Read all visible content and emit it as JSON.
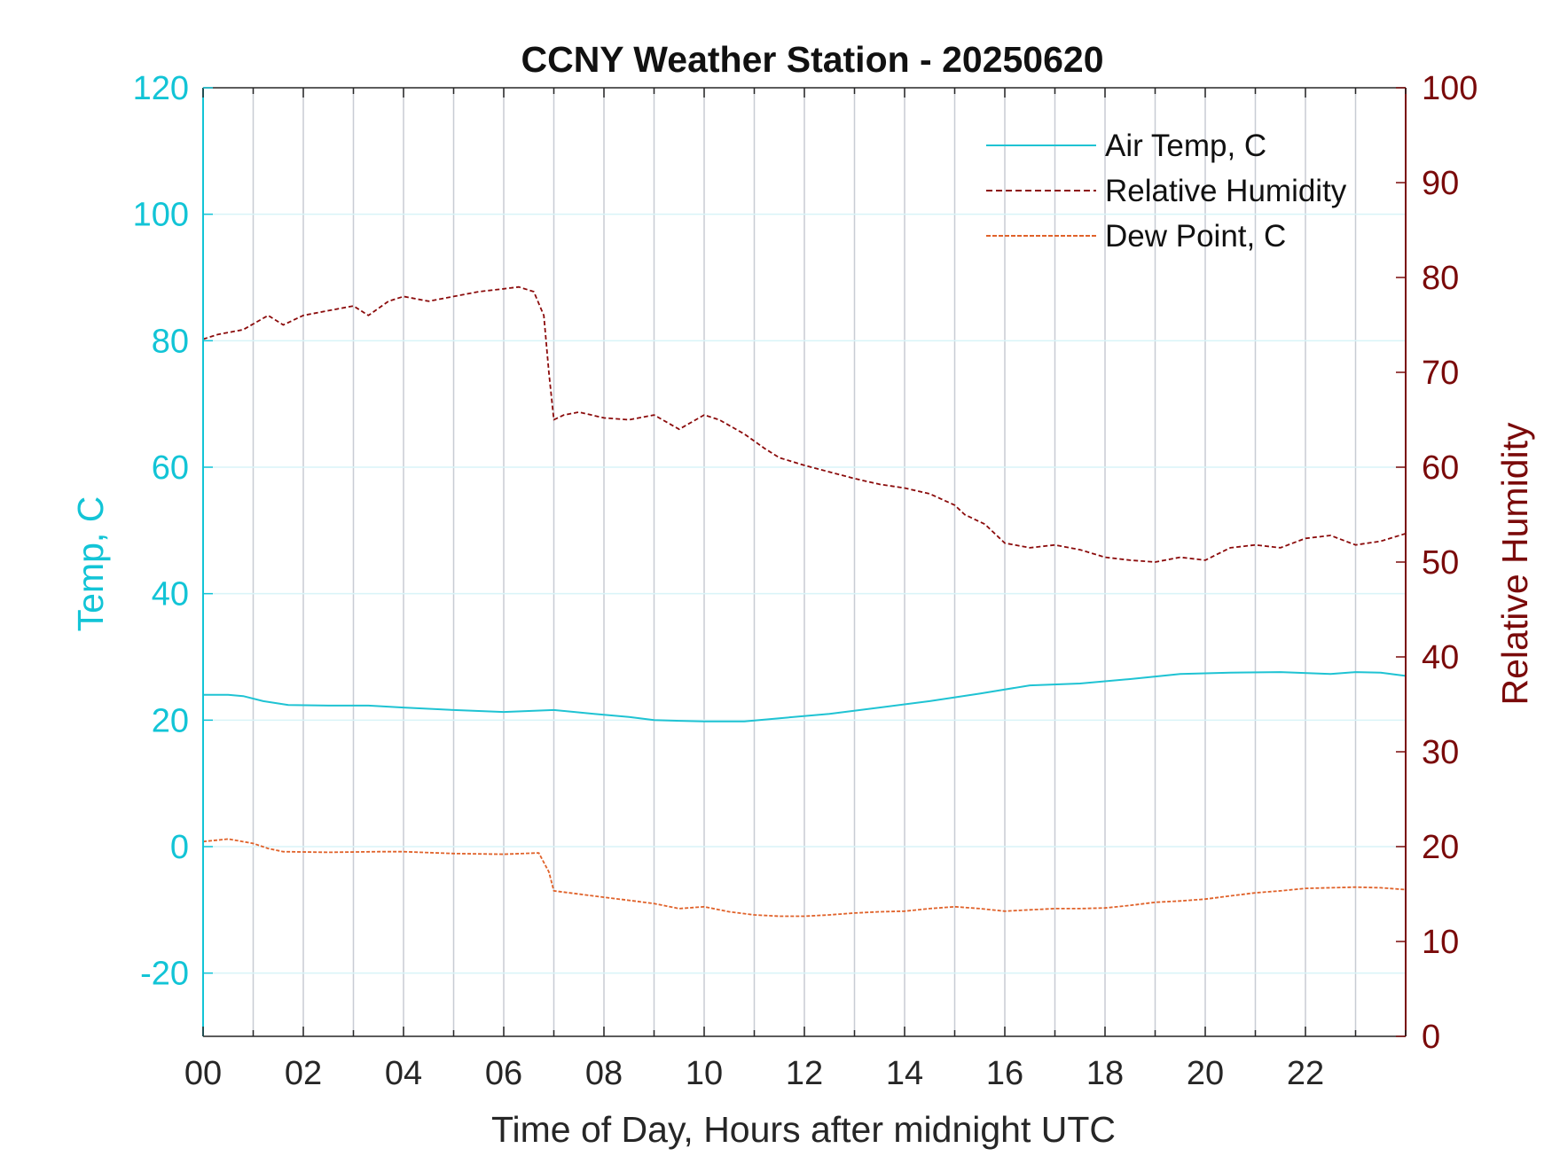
{
  "chart_data": {
    "type": "line",
    "title": "CCNY Weather Station - 20250620",
    "xlabel": "Time of Day, Hours after midnight UTC",
    "ylabel_left": "Temp, C",
    "ylabel_right": "Relative Humidity",
    "xlim": [
      0,
      24
    ],
    "ylim_left": [
      -30,
      120
    ],
    "ylim_right": [
      0,
      100
    ],
    "x_ticks": [
      0,
      2,
      4,
      6,
      8,
      10,
      12,
      14,
      16,
      18,
      20,
      22
    ],
    "x_tick_labels": [
      "00",
      "02",
      "04",
      "06",
      "08",
      "10",
      "12",
      "14",
      "16",
      "18",
      "20",
      "22"
    ],
    "y_ticks_left": [
      -20,
      0,
      20,
      40,
      60,
      80,
      100,
      120
    ],
    "y_ticks_right": [
      0,
      10,
      20,
      30,
      40,
      50,
      60,
      70,
      80,
      90,
      100
    ],
    "grid": true,
    "legend_position": "top-right",
    "colors": {
      "left_axis": "#12c4d6",
      "right_axis": "#7a0a0a",
      "grid_vertical": "#c8ccd4",
      "grid_horizontal": "#d9f4f8"
    },
    "series": [
      {
        "name": "Air Temp, C",
        "axis": "left",
        "color": "#1fc3d3",
        "dash": "solid",
        "x": [
          0,
          0.5,
          0.8,
          1.2,
          1.7,
          2.5,
          3.3,
          4.0,
          5.0,
          6.0,
          7.0,
          7.8,
          8.5,
          9.0,
          10.0,
          10.8,
          11.5,
          12.5,
          13.5,
          14.5,
          15.5,
          16.5,
          17.5,
          18.5,
          19.5,
          20.5,
          21.5,
          22.5,
          23.0,
          23.5,
          24.0
        ],
        "values": [
          24.0,
          24.0,
          23.8,
          23.0,
          22.4,
          22.3,
          22.3,
          22.0,
          21.6,
          21.3,
          21.6,
          21.0,
          20.5,
          20.0,
          19.8,
          19.8,
          20.3,
          21.0,
          22.0,
          23.0,
          24.2,
          25.5,
          25.8,
          26.5,
          27.3,
          27.5,
          27.6,
          27.3,
          27.6,
          27.5,
          27.0
        ]
      },
      {
        "name": "Relative Humidity",
        "axis": "right",
        "color": "#8b0b0b",
        "dash": "dashed",
        "x": [
          0,
          0.3,
          0.8,
          1.3,
          1.6,
          2.0,
          2.5,
          3.0,
          3.3,
          3.7,
          4.0,
          4.5,
          5.0,
          5.5,
          6.0,
          6.3,
          6.6,
          6.8,
          6.9,
          7.0,
          7.2,
          7.5,
          8.0,
          8.5,
          9.0,
          9.5,
          10.0,
          10.3,
          10.8,
          11.2,
          11.5,
          12.0,
          12.5,
          13.0,
          13.5,
          14.0,
          14.5,
          15.0,
          15.2,
          15.6,
          16.0,
          16.5,
          17.0,
          17.5,
          18.0,
          18.5,
          19.0,
          19.5,
          20.0,
          20.5,
          21.0,
          21.5,
          22.0,
          22.5,
          23.0,
          23.5,
          24.0
        ],
        "values": [
          73.5,
          74.0,
          74.5,
          76.0,
          75.0,
          76.0,
          76.5,
          77.0,
          76.0,
          77.5,
          78.0,
          77.5,
          78.0,
          78.5,
          78.8,
          79.0,
          78.5,
          76.0,
          70.0,
          65.0,
          65.5,
          65.8,
          65.2,
          65.0,
          65.5,
          64.0,
          65.5,
          65.0,
          63.5,
          62.0,
          61.0,
          60.2,
          59.5,
          58.8,
          58.2,
          57.8,
          57.2,
          56.0,
          55.0,
          54.0,
          52.0,
          51.5,
          51.8,
          51.3,
          50.5,
          50.2,
          50.0,
          50.5,
          50.2,
          51.5,
          51.8,
          51.5,
          52.5,
          52.8,
          51.8,
          52.2,
          53.0
        ]
      },
      {
        "name": "Dew Point, C",
        "axis": "left",
        "color": "#e0622a",
        "dash": "dashed",
        "x": [
          0,
          0.5,
          1.0,
          1.3,
          1.6,
          2.5,
          3.5,
          4.0,
          5.0,
          6.0,
          6.7,
          6.9,
          7.0,
          7.5,
          8.0,
          8.5,
          9.0,
          9.5,
          10.0,
          10.5,
          11.0,
          11.5,
          12.0,
          12.5,
          13.0,
          13.5,
          14.0,
          14.5,
          15.0,
          15.5,
          16.0,
          16.5,
          17.0,
          17.5,
          18.0,
          18.5,
          19.0,
          19.5,
          20.0,
          20.5,
          21.0,
          21.5,
          22.0,
          22.5,
          23.0,
          23.5,
          24.0
        ],
        "values": [
          0.8,
          1.2,
          0.5,
          -0.3,
          -0.8,
          -0.9,
          -0.8,
          -0.8,
          -1.1,
          -1.2,
          -1.0,
          -4.0,
          -7.0,
          -7.5,
          -8.0,
          -8.5,
          -9.0,
          -9.8,
          -9.5,
          -10.3,
          -10.8,
          -11.0,
          -11.0,
          -10.8,
          -10.5,
          -10.3,
          -10.2,
          -9.8,
          -9.5,
          -9.8,
          -10.2,
          -10.0,
          -9.8,
          -9.8,
          -9.7,
          -9.3,
          -8.8,
          -8.6,
          -8.3,
          -7.8,
          -7.3,
          -7.0,
          -6.6,
          -6.5,
          -6.4,
          -6.5,
          -6.8
        ]
      }
    ]
  }
}
